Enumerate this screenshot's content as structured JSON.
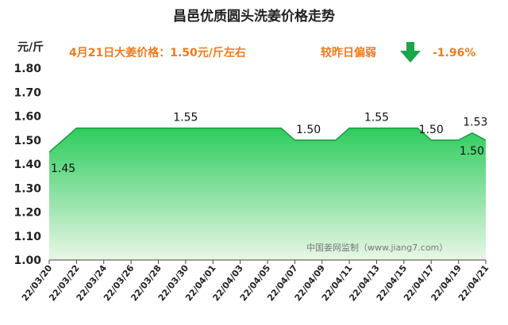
{
  "header": {
    "title": "昌邑优质圆头洗姜价格走势",
    "unit": "元/斤",
    "price_note": "4月21日大姜价格：1.50元/斤左右",
    "compare_label": "较昨日偏弱",
    "change": "-1.96%",
    "arrow_icon": "arrow-down-icon",
    "accent_color": "#ee7b1f",
    "arrow_color": "#1aa64a"
  },
  "source": "中国姜网监制（www.jiang7.com）",
  "chart_data": {
    "type": "area",
    "ylim": [
      1.0,
      1.8
    ],
    "yticks": [
      "1.00",
      "1.10",
      "1.20",
      "1.30",
      "1.40",
      "1.50",
      "1.60",
      "1.70",
      "1.80"
    ],
    "xticks": [
      "22/03/20",
      "22/03/22",
      "22/03/24",
      "22/03/26",
      "22/03/28",
      "22/03/30",
      "22/04/01",
      "22/04/03",
      "22/04/05",
      "22/04/07",
      "22/04/09",
      "22/04/11",
      "22/04/13",
      "22/04/15",
      "22/04/17",
      "22/04/19",
      "22/04/21"
    ],
    "x": [
      "22/03/20",
      "22/03/22",
      "22/03/24",
      "22/03/26",
      "22/03/28",
      "22/03/30",
      "22/04/01",
      "22/04/03",
      "22/04/05",
      "22/04/06",
      "22/04/07",
      "22/04/09",
      "22/04/10",
      "22/04/11",
      "22/04/13",
      "22/04/15",
      "22/04/16",
      "22/04/17",
      "22/04/19",
      "22/04/20",
      "22/04/21"
    ],
    "values": [
      1.45,
      1.55,
      1.55,
      1.55,
      1.55,
      1.55,
      1.55,
      1.55,
      1.55,
      1.55,
      1.5,
      1.5,
      1.5,
      1.55,
      1.55,
      1.55,
      1.55,
      1.5,
      1.5,
      1.53,
      1.5
    ],
    "data_labels": [
      {
        "x": "22/03/20",
        "text": "1.45"
      },
      {
        "x": "22/03/30",
        "text": "1.55"
      },
      {
        "x": "22/04/08",
        "text": "1.50"
      },
      {
        "x": "22/04/13",
        "text": "1.55"
      },
      {
        "x": "22/04/17",
        "text": "1.50"
      },
      {
        "x": "22/04/20",
        "text": "1.53"
      },
      {
        "x": "22/04/21",
        "text": "1.50"
      }
    ],
    "fill_top_color": "#2ecc5e",
    "fill_bottom_color": "#e9f7e6",
    "line_color": "#1a9b3c"
  }
}
